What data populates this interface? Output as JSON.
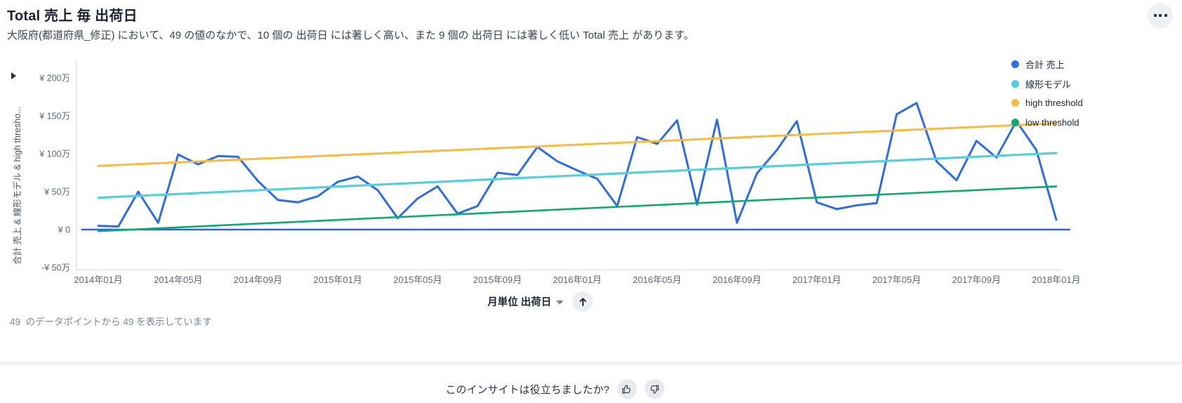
{
  "header": {
    "title": "Total 売上 毎 出荷日",
    "menu_button": "more-options"
  },
  "subtitle": "大阪府(都道府県_修正) において、49 の値のなかで、10 個の 出荷日 には著しく高い、また 9 個の 出荷日 には著しく低い Total 売上 があります。",
  "status_line": "49  のデータポイントから 49 を表示しています",
  "colors": {
    "sales": "#2e6ce4",
    "linear_model": "#55cedd",
    "high_threshold": "#f7bb40",
    "low_threshold": "#0daa6e",
    "zero_line": "#2f63de",
    "axis_border": "#d8dade",
    "button_bg": "#eceef2"
  },
  "legend": {
    "items": [
      {
        "label": "合計 売上",
        "color": "#2c6ee8"
      },
      {
        "label": "線形モデル",
        "color": "#4fd0dd"
      },
      {
        "label": "high threshold",
        "color": "#f7bb40"
      },
      {
        "label": "low threshold",
        "color": "#0daa6e"
      }
    ]
  },
  "chart_data": {
    "type": "line",
    "title": "Total 売上 毎 出荷日",
    "y_axis_title": "合計 売上 & 線形モデル & high thresho...",
    "x_axis_field": "月単位 出荷日",
    "unit": "万円",
    "x_range": "2014年01月 〜 2018年01月 (月次, 49ポイント)",
    "point_count": 49,
    "ylim": [
      -50,
      200
    ],
    "y_ticks": [
      {
        "label": "¥ 200万",
        "value": 200
      },
      {
        "label": "¥ 150万",
        "value": 150
      },
      {
        "label": "¥ 100万",
        "value": 100
      },
      {
        "label": "¥ 50万",
        "value": 50
      },
      {
        "label": "¥ 0",
        "value": 0
      },
      {
        "label": "-¥ 50万",
        "value": -50
      }
    ],
    "x_ticks": [
      {
        "label": "2014年01月",
        "month_index": 0
      },
      {
        "label": "2014年05月",
        "month_index": 4
      },
      {
        "label": "2014年09月",
        "month_index": 8
      },
      {
        "label": "2015年01月",
        "month_index": 12
      },
      {
        "label": "2015年05月",
        "month_index": 16
      },
      {
        "label": "2015年09月",
        "month_index": 20
      },
      {
        "label": "2016年01月",
        "month_index": 24
      },
      {
        "label": "2016年05月",
        "month_index": 28
      },
      {
        "label": "2016年09月",
        "month_index": 32
      },
      {
        "label": "2017年01月",
        "month_index": 36
      },
      {
        "label": "2017年05月",
        "month_index": 40
      },
      {
        "label": "2017年09月",
        "month_index": 44
      },
      {
        "label": "2018年01月",
        "month_index": 48
      }
    ],
    "series": [
      {
        "name": "合計 売上",
        "values_in_10k_yen": [
          5,
          4,
          50,
          9,
          99,
          86,
          97,
          96,
          64,
          39,
          36,
          44,
          63,
          70,
          52,
          15,
          41,
          57,
          21,
          31,
          75,
          72,
          109,
          90,
          78,
          67,
          31,
          122,
          113,
          144,
          33,
          145,
          9,
          74,
          105,
          143,
          36,
          27,
          32,
          35,
          152,
          167,
          90,
          65,
          117,
          95,
          143,
          105,
          13
        ]
      }
    ],
    "trend_lines": [
      {
        "name": "linear-model-line",
        "label": "線形モデル",
        "color": "#55cedd",
        "start": 42,
        "end": 101,
        "width": 3.2
      },
      {
        "name": "high-threshold-line",
        "label": "high threshold",
        "color": "#f7bb40",
        "start": 84,
        "end": 140,
        "width": 3
      },
      {
        "name": "low-threshold-line",
        "label": "low threshold",
        "color": "#0daa6e",
        "start": -2,
        "end": 57,
        "width": 2.6
      }
    ],
    "reference_line": {
      "label": "¥ 0",
      "value": 0
    }
  },
  "controls": {
    "x_field_label": "月単位 出荷日",
    "expand_button": "up-arrow"
  },
  "footer": {
    "question": "このインサイトは役立ちましたか?"
  }
}
